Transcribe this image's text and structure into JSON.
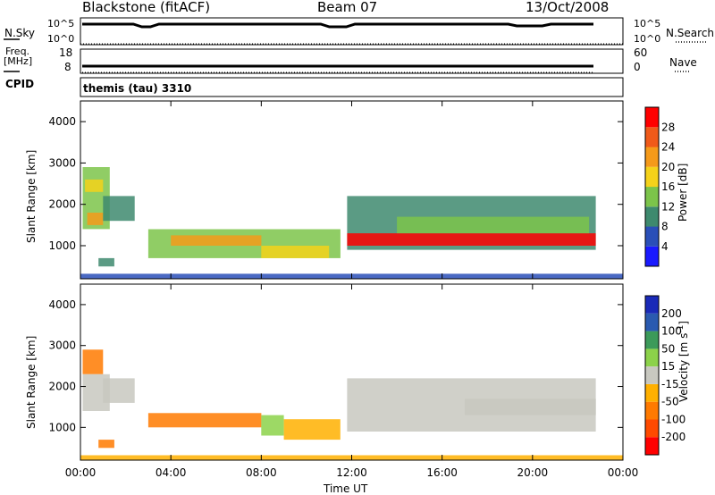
{
  "header": {
    "station": "Blackstone (fitACF)",
    "beam": "Beam 07",
    "date": "13/Oct/2008"
  },
  "top_panels": {
    "nsky_label": "N.Sky",
    "nsky_ticks": [
      "10^5",
      "10^0"
    ],
    "nsearch_label": "N.Search",
    "nsearch_ticks": [
      "10^5",
      "10^0"
    ],
    "freq_label": "Freq.",
    "freq_unit": "[MHz]",
    "freq_ticks": [
      "18",
      "8"
    ],
    "nave_label": "Nave",
    "nave_ticks": [
      "60",
      "0"
    ],
    "cpid_label": "CPID",
    "cpid_value": "themis (tau) 3310"
  },
  "colors": {
    "power_scale": [
      "#1a1aff",
      "#2a4fb8",
      "#3e8a6e",
      "#7cc44a",
      "#f5d21a",
      "#f59a1a",
      "#f05a1a",
      "#ff0000"
    ],
    "velocity_scale": [
      "#ff0000",
      "#ff4a00",
      "#ff7a00",
      "#ffb000",
      "#c8c8c0",
      "#8cd24a",
      "#3c9a5a",
      "#2a5ab0",
      "#1a2ab8"
    ]
  },
  "chart_data": [
    {
      "type": "heatmap",
      "name": "power",
      "ylabel": "Slant Range [km]",
      "xlabel": "",
      "x_ticks": [
        "00:00",
        "04:00",
        "08:00",
        "12:00",
        "16:00",
        "20:00",
        "00:00"
      ],
      "y_ticks": [
        "1000",
        "2000",
        "3000",
        "4000"
      ],
      "ylim": [
        200,
        4500
      ],
      "xlim_hours": [
        0,
        24
      ],
      "colorbar": {
        "label": "Power [dB]",
        "ticks": [
          "4",
          "8",
          "12",
          "16",
          "20",
          "24",
          "28"
        ],
        "range": [
          0,
          32
        ]
      },
      "bands": [
        {
          "t0": 0.1,
          "t1": 1.3,
          "r0": 1400,
          "r1": 2900,
          "v": 14
        },
        {
          "t0": 0.3,
          "t1": 1.0,
          "r0": 1500,
          "r1": 1800,
          "v": 22
        },
        {
          "t0": 0.2,
          "t1": 1.0,
          "r0": 2300,
          "r1": 2600,
          "v": 18
        },
        {
          "t0": 1.0,
          "t1": 2.4,
          "r0": 1600,
          "r1": 2200,
          "v": 10
        },
        {
          "t0": 0.8,
          "t1": 1.5,
          "r0": 500,
          "r1": 700,
          "v": 8
        },
        {
          "t0": 3.0,
          "t1": 11.5,
          "r0": 700,
          "r1": 1400,
          "v": 12
        },
        {
          "t0": 4.0,
          "t1": 8.0,
          "r0": 1000,
          "r1": 1250,
          "v": 20
        },
        {
          "t0": 8.0,
          "t1": 11.0,
          "r0": 700,
          "r1": 1000,
          "v": 18
        },
        {
          "t0": 11.8,
          "t1": 22.8,
          "r0": 900,
          "r1": 2200,
          "v": 10
        },
        {
          "t0": 11.8,
          "t1": 22.8,
          "r0": 1000,
          "r1": 1300,
          "v": 28
        },
        {
          "t0": 14.0,
          "t1": 22.5,
          "r0": 1300,
          "r1": 1700,
          "v": 12
        },
        {
          "t0": 0.0,
          "t1": 24.0,
          "r0": 200,
          "r1": 320,
          "v": 6
        }
      ]
    },
    {
      "type": "heatmap",
      "name": "velocity",
      "ylabel": "Slant Range [km]",
      "xlabel": "Time UT",
      "x_ticks": [
        "00:00",
        "04:00",
        "08:00",
        "12:00",
        "16:00",
        "20:00",
        "00:00"
      ],
      "y_ticks": [
        "1000",
        "2000",
        "3000",
        "4000"
      ],
      "ylim": [
        200,
        4500
      ],
      "xlim_hours": [
        0,
        24
      ],
      "colorbar": {
        "label": "Velocity [m s",
        "label_sup": "-1",
        "label_end": "]",
        "ticks": [
          "200",
          "100",
          "50",
          "15",
          "-15",
          "-50",
          "-100",
          "-200"
        ],
        "range": [
          -250,
          250
        ]
      },
      "bands": [
        {
          "t0": 0.1,
          "t1": 1.0,
          "r0": 2300,
          "r1": 2900,
          "v": -70
        },
        {
          "t0": 0.1,
          "t1": 1.3,
          "r0": 1400,
          "r1": 2300,
          "v": 0
        },
        {
          "t0": 1.0,
          "t1": 2.4,
          "r0": 1600,
          "r1": 2200,
          "v": -5
        },
        {
          "t0": 0.8,
          "t1": 1.5,
          "r0": 500,
          "r1": 700,
          "v": -60
        },
        {
          "t0": 3.0,
          "t1": 8.0,
          "r0": 1000,
          "r1": 1350,
          "v": -70
        },
        {
          "t0": 8.0,
          "t1": 9.0,
          "r0": 800,
          "r1": 1300,
          "v": 30
        },
        {
          "t0": 9.0,
          "t1": 11.5,
          "r0": 700,
          "r1": 1200,
          "v": -40
        },
        {
          "t0": 11.8,
          "t1": 22.8,
          "r0": 900,
          "r1": 2200,
          "v": 0
        },
        {
          "t0": 17.0,
          "t1": 22.8,
          "r0": 1300,
          "r1": 1700,
          "v": -10
        },
        {
          "t0": 0.0,
          "t1": 24.0,
          "r0": 200,
          "r1": 320,
          "v": -30
        }
      ]
    }
  ]
}
